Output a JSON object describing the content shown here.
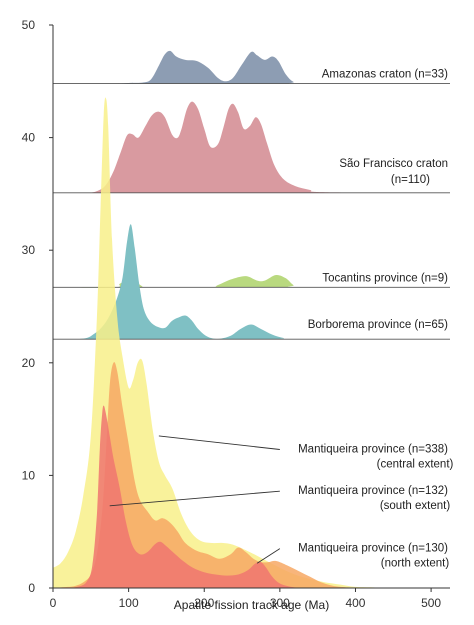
{
  "chart_data": {
    "type": "area",
    "title": "",
    "xlabel": "Apatite fission track age (Ma)",
    "ylabel": "",
    "xlim": [
      0,
      525
    ],
    "ylim": [
      0,
      50
    ],
    "x_ticks": [
      0,
      100,
      200,
      300,
      400,
      500
    ],
    "y_ticks": [
      0,
      10,
      20,
      30,
      40,
      50
    ],
    "grid": false,
    "legend": "none",
    "series": [
      {
        "label": "Amazonas craton (n=33)",
        "color": "#8d9db3",
        "baseline": 44.8,
        "points": [
          [
            0,
            44.8
          ],
          [
            80,
            44.8
          ],
          [
            100,
            44.85
          ],
          [
            120,
            44.9
          ],
          [
            130,
            45.2
          ],
          [
            140,
            46.4
          ],
          [
            148,
            47.4
          ],
          [
            155,
            47.7
          ],
          [
            163,
            47.2
          ],
          [
            175,
            46.9
          ],
          [
            190,
            46.8
          ],
          [
            205,
            46.2
          ],
          [
            218,
            45.3
          ],
          [
            228,
            45.0
          ],
          [
            238,
            45.3
          ],
          [
            250,
            46.5
          ],
          [
            262,
            47.6
          ],
          [
            270,
            47.3
          ],
          [
            280,
            46.9
          ],
          [
            290,
            47.2
          ],
          [
            298,
            46.8
          ],
          [
            308,
            45.6
          ],
          [
            318,
            44.95
          ],
          [
            330,
            44.8
          ],
          [
            525,
            44.8
          ]
        ]
      },
      {
        "label": "São Francisco craton (n=110)",
        "color": "#d99aa0",
        "baseline": 35.1,
        "points": [
          [
            0,
            35.1
          ],
          [
            45,
            35.1
          ],
          [
            60,
            35.3
          ],
          [
            70,
            35.8
          ],
          [
            80,
            37.0
          ],
          [
            90,
            38.8
          ],
          [
            98,
            40.2
          ],
          [
            105,
            40.3
          ],
          [
            113,
            40.0
          ],
          [
            122,
            41.0
          ],
          [
            131,
            42.0
          ],
          [
            140,
            42.3
          ],
          [
            148,
            41.8
          ],
          [
            158,
            40.2
          ],
          [
            165,
            40.0
          ],
          [
            170,
            40.8
          ],
          [
            177,
            42.5
          ],
          [
            184,
            43.2
          ],
          [
            192,
            42.5
          ],
          [
            200,
            40.8
          ],
          [
            208,
            39.2
          ],
          [
            218,
            39.4
          ],
          [
            225,
            40.8
          ],
          [
            232,
            42.5
          ],
          [
            238,
            43.0
          ],
          [
            245,
            42.2
          ],
          [
            252,
            40.8
          ],
          [
            260,
            41.0
          ],
          [
            268,
            41.8
          ],
          [
            275,
            41.2
          ],
          [
            283,
            39.5
          ],
          [
            293,
            37.5
          ],
          [
            305,
            36.3
          ],
          [
            320,
            35.7
          ],
          [
            340,
            35.35
          ],
          [
            360,
            35.15
          ],
          [
            525,
            35.1
          ]
        ]
      },
      {
        "label": "Tocantins province (n=9)",
        "color": "#b9d97f",
        "baseline": 26.7,
        "points": [
          [
            0,
            26.7
          ],
          [
            80,
            26.7
          ],
          [
            88,
            27.0
          ],
          [
            95,
            27.3
          ],
          [
            103,
            27.6
          ],
          [
            110,
            27.2
          ],
          [
            118,
            26.8
          ],
          [
            125,
            26.7
          ],
          [
            205,
            26.7
          ],
          [
            218,
            26.9
          ],
          [
            235,
            27.4
          ],
          [
            255,
            27.7
          ],
          [
            270,
            27.3
          ],
          [
            280,
            27.3
          ],
          [
            295,
            27.8
          ],
          [
            308,
            27.5
          ],
          [
            318,
            26.9
          ],
          [
            328,
            26.7
          ],
          [
            525,
            26.7
          ]
        ]
      },
      {
        "label": "Borborema province (n=65)",
        "color": "#7fc0c4",
        "baseline": 22.1,
        "points": [
          [
            0,
            22.1
          ],
          [
            40,
            22.15
          ],
          [
            55,
            22.6
          ],
          [
            65,
            23.2
          ],
          [
            75,
            24.2
          ],
          [
            85,
            25.8
          ],
          [
            92,
            27.6
          ],
          [
            98,
            30.8
          ],
          [
            103,
            32.3
          ],
          [
            108,
            30.2
          ],
          [
            114,
            27.0
          ],
          [
            120,
            24.8
          ],
          [
            128,
            23.7
          ],
          [
            138,
            23.2
          ],
          [
            148,
            23.1
          ],
          [
            157,
            23.7
          ],
          [
            165,
            24.0
          ],
          [
            175,
            24.2
          ],
          [
            183,
            23.8
          ],
          [
            192,
            23.0
          ],
          [
            202,
            22.4
          ],
          [
            212,
            22.15
          ],
          [
            222,
            22.15
          ],
          [
            235,
            22.4
          ],
          [
            248,
            23.0
          ],
          [
            262,
            23.4
          ],
          [
            275,
            23.0
          ],
          [
            290,
            22.5
          ],
          [
            305,
            22.2
          ],
          [
            320,
            22.1
          ],
          [
            525,
            22.1
          ]
        ]
      },
      {
        "label": "Mantiqueira province (n=338)",
        "sublabel": "(central extent)",
        "color": "#f8f08a",
        "opacity": 0.85,
        "baseline": 0,
        "points": [
          [
            0,
            1.8
          ],
          [
            10,
            2.2
          ],
          [
            20,
            3.2
          ],
          [
            30,
            5.0
          ],
          [
            40,
            8.2
          ],
          [
            50,
            13.5
          ],
          [
            58,
            24.0
          ],
          [
            63,
            34.0
          ],
          [
            67,
            42.0
          ],
          [
            70,
            43.5
          ],
          [
            73,
            41.0
          ],
          [
            78,
            31.0
          ],
          [
            85,
            24.0
          ],
          [
            92,
            20.5
          ],
          [
            100,
            17.8
          ],
          [
            106,
            18.5
          ],
          [
            112,
            20.0
          ],
          [
            118,
            20.2
          ],
          [
            124,
            18.0
          ],
          [
            132,
            14.0
          ],
          [
            140,
            11.2
          ],
          [
            148,
            10.0
          ],
          [
            158,
            8.8
          ],
          [
            170,
            6.5
          ],
          [
            182,
            5.0
          ],
          [
            195,
            4.2
          ],
          [
            210,
            4.0
          ],
          [
            225,
            4.0
          ],
          [
            240,
            3.8
          ],
          [
            260,
            3.2
          ],
          [
            280,
            2.5
          ],
          [
            300,
            1.8
          ],
          [
            320,
            1.2
          ],
          [
            340,
            0.8
          ],
          [
            360,
            0.5
          ],
          [
            380,
            0.3
          ],
          [
            400,
            0.1
          ],
          [
            425,
            0.05
          ]
        ]
      },
      {
        "label": "Mantiqueira province (n=132)",
        "sublabel": "(south extent)",
        "color": "#f7a864",
        "opacity": 0.85,
        "baseline": 0,
        "points": [
          [
            0,
            0
          ],
          [
            20,
            0.1
          ],
          [
            30,
            0.2
          ],
          [
            40,
            0.5
          ],
          [
            50,
            1.2
          ],
          [
            58,
            3.0
          ],
          [
            65,
            6.8
          ],
          [
            70,
            12.0
          ],
          [
            75,
            18.0
          ],
          [
            80,
            20.0
          ],
          [
            85,
            19.2
          ],
          [
            92,
            16.0
          ],
          [
            100,
            12.8
          ],
          [
            108,
            9.5
          ],
          [
            115,
            7.8
          ],
          [
            125,
            6.8
          ],
          [
            135,
            6.0
          ],
          [
            145,
            6.2
          ],
          [
            155,
            5.8
          ],
          [
            165,
            5.0
          ],
          [
            175,
            4.0
          ],
          [
            190,
            3.3
          ],
          [
            205,
            3.0
          ],
          [
            220,
            2.6
          ],
          [
            235,
            3.0
          ],
          [
            245,
            3.6
          ],
          [
            255,
            3.2
          ],
          [
            265,
            2.6
          ],
          [
            275,
            2.3
          ],
          [
            285,
            2.3
          ],
          [
            295,
            2.4
          ],
          [
            310,
            2.0
          ],
          [
            325,
            1.5
          ],
          [
            340,
            1.0
          ],
          [
            355,
            0.5
          ],
          [
            370,
            0.2
          ],
          [
            390,
            0.05
          ],
          [
            400,
            0
          ]
        ]
      },
      {
        "label": "Mantiqueira province (n=130)",
        "sublabel": "(north extent)",
        "color": "#f07570",
        "opacity": 0.85,
        "baseline": 0,
        "points": [
          [
            0,
            0
          ],
          [
            20,
            0
          ],
          [
            35,
            0.15
          ],
          [
            45,
            0.6
          ],
          [
            52,
            2.0
          ],
          [
            58,
            6.5
          ],
          [
            62,
            12.5
          ],
          [
            65,
            15.5
          ],
          [
            67,
            16.2
          ],
          [
            70,
            15.5
          ],
          [
            75,
            13.5
          ],
          [
            80,
            11.5
          ],
          [
            88,
            9.0
          ],
          [
            96,
            6.0
          ],
          [
            105,
            3.8
          ],
          [
            115,
            3.0
          ],
          [
            125,
            3.2
          ],
          [
            135,
            3.9
          ],
          [
            142,
            4.1
          ],
          [
            150,
            3.7
          ],
          [
            160,
            3.1
          ],
          [
            172,
            2.4
          ],
          [
            185,
            1.8
          ],
          [
            200,
            1.4
          ],
          [
            215,
            1.2
          ],
          [
            230,
            1.1
          ],
          [
            245,
            1.2
          ],
          [
            258,
            1.6
          ],
          [
            268,
            2.2
          ],
          [
            275,
            2.3
          ],
          [
            282,
            1.8
          ],
          [
            290,
            1.0
          ],
          [
            300,
            0.4
          ],
          [
            315,
            0.1
          ],
          [
            330,
            0
          ]
        ]
      }
    ],
    "label_positions": "right",
    "leader_lines": [
      {
        "series": "Mantiqueira province (n=338)",
        "from": [
          140,
          13.5
        ],
        "to": [
          300,
          12.3
        ]
      },
      {
        "series": "Mantiqueira province (n=132)",
        "from": [
          75,
          7.3
        ],
        "to": [
          300,
          8.6
        ]
      },
      {
        "series": "Mantiqueira province (n=130)",
        "from": [
          270,
          2.2
        ],
        "to": [
          300,
          3.5
        ]
      }
    ]
  }
}
